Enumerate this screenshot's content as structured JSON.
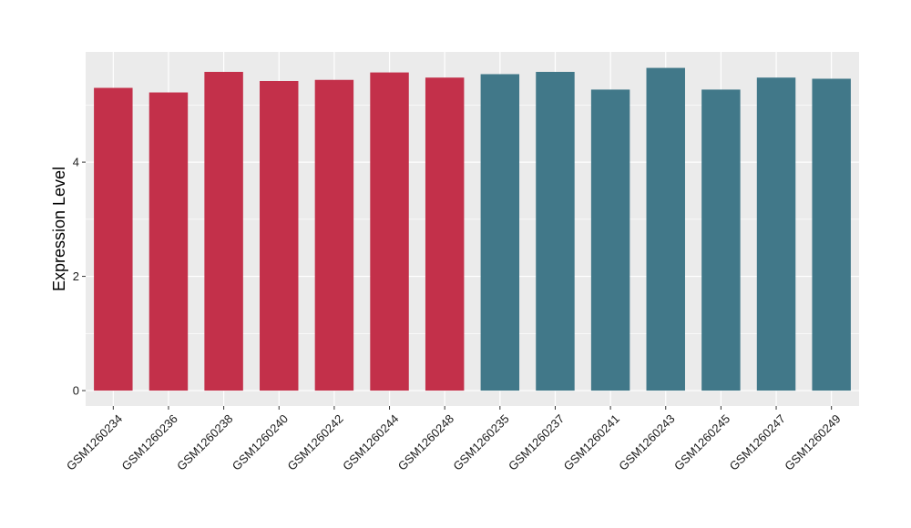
{
  "chart_data": {
    "type": "bar",
    "title": "",
    "xlabel": "",
    "ylabel": "Expression Level",
    "categories": [
      "GSM1260234",
      "GSM1260236",
      "GSM1260238",
      "GSM1260240",
      "GSM1260242",
      "GSM1260244",
      "GSM1260248",
      "GSM1260235",
      "GSM1260237",
      "GSM1260241",
      "GSM1260243",
      "GSM1260245",
      "GSM1260247",
      "GSM1260249"
    ],
    "values": [
      5.3,
      5.22,
      5.58,
      5.42,
      5.44,
      5.57,
      5.48,
      5.54,
      5.58,
      5.27,
      5.65,
      5.27,
      5.48,
      5.46
    ],
    "groups": [
      1,
      1,
      1,
      1,
      1,
      1,
      1,
      2,
      2,
      2,
      2,
      2,
      2,
      2
    ],
    "group_colors": {
      "1": "#c3304a",
      "2": "#417889"
    },
    "yticks": [
      0,
      2,
      4
    ],
    "ylim": [
      -0.27,
      5.93
    ],
    "grid": true,
    "legend": "none",
    "panel_color": "#ebebeb",
    "grid_color": "#ffffff"
  }
}
